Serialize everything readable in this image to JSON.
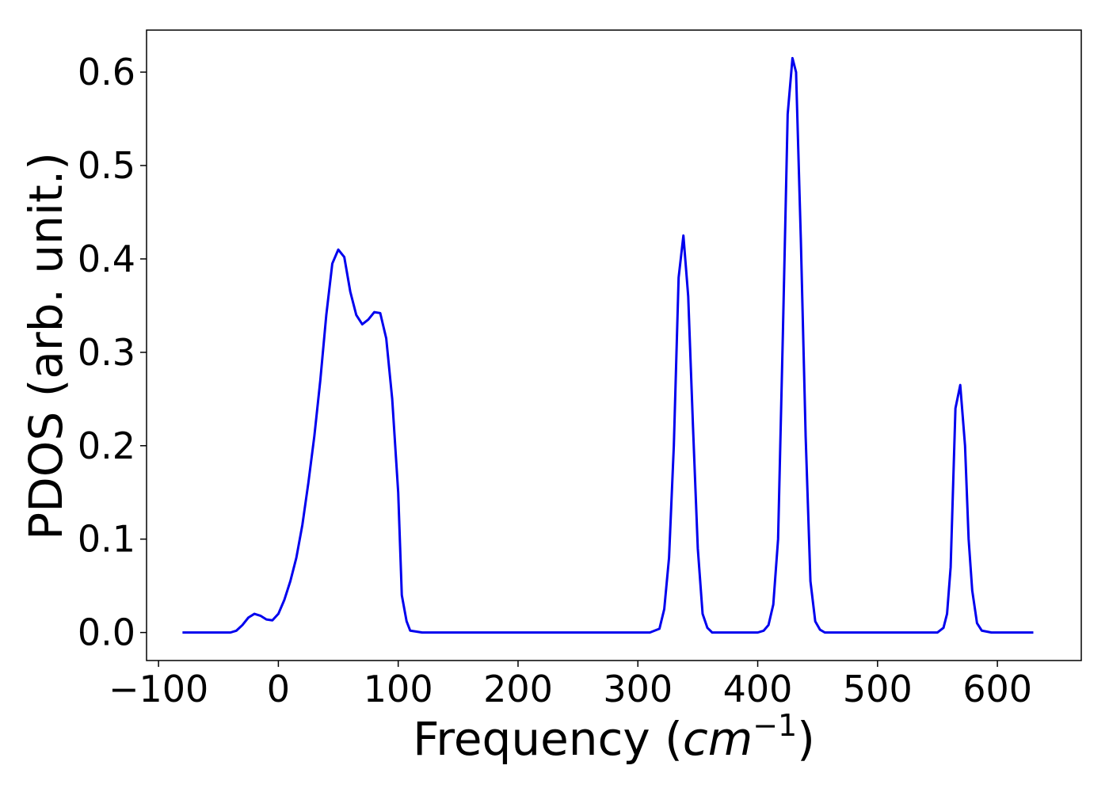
{
  "chart_data": {
    "type": "line",
    "title": "",
    "xlabel_prefix": "Frequency (",
    "xlabel_unit": "cm",
    "xlabel_exp": "−1",
    "xlabel_suffix": ")",
    "ylabel": "PDOS (arb. unit.)",
    "xlim": [
      -110,
      670
    ],
    "ylim": [
      -0.03,
      0.645
    ],
    "xticks": [
      -100,
      0,
      100,
      200,
      300,
      400,
      500,
      600
    ],
    "xtick_labels": [
      "−100",
      "0",
      "100",
      "200",
      "300",
      "400",
      "500",
      "600"
    ],
    "yticks": [
      0.0,
      0.1,
      0.2,
      0.3,
      0.4,
      0.5,
      0.6
    ],
    "ytick_labels": [
      "0.0",
      "0.1",
      "0.2",
      "0.3",
      "0.4",
      "0.5",
      "0.6"
    ],
    "grid": false,
    "line_color": "#0000ee",
    "series": [
      {
        "x": [
          -80,
          -40,
          -35,
          -30,
          -25,
          -20,
          -15,
          -10,
          -5,
          0,
          5,
          10,
          15,
          20,
          25,
          30,
          35,
          40,
          45,
          50,
          55,
          60,
          65,
          70,
          75,
          80,
          85,
          90,
          95,
          100,
          103,
          107,
          110,
          120,
          300,
          310,
          318,
          322,
          326,
          330,
          334,
          338,
          342,
          346,
          350,
          354,
          358,
          362,
          366,
          380,
          400,
          405,
          409,
          413,
          417,
          421,
          425,
          429,
          432,
          436,
          440,
          444,
          448,
          452,
          456,
          460,
          470,
          540,
          550,
          555,
          558,
          561,
          565,
          569,
          573,
          576,
          579,
          583,
          587,
          595,
          630
        ],
        "y": [
          0.0,
          0.0,
          0.002,
          0.008,
          0.016,
          0.02,
          0.018,
          0.014,
          0.013,
          0.02,
          0.035,
          0.055,
          0.08,
          0.115,
          0.16,
          0.21,
          0.27,
          0.34,
          0.395,
          0.41,
          0.402,
          0.365,
          0.34,
          0.33,
          0.335,
          0.343,
          0.342,
          0.315,
          0.25,
          0.15,
          0.04,
          0.012,
          0.002,
          0.0,
          0.0,
          0.0,
          0.004,
          0.025,
          0.08,
          0.2,
          0.38,
          0.425,
          0.36,
          0.22,
          0.09,
          0.02,
          0.005,
          0.0,
          0.0,
          0.0,
          0.0,
          0.002,
          0.008,
          0.03,
          0.1,
          0.32,
          0.555,
          0.615,
          0.6,
          0.42,
          0.21,
          0.055,
          0.012,
          0.003,
          0.0,
          0.0,
          0.0,
          0.0,
          0.0,
          0.005,
          0.02,
          0.07,
          0.24,
          0.265,
          0.2,
          0.1,
          0.045,
          0.01,
          0.002,
          0.0,
          0.0
        ]
      }
    ]
  }
}
